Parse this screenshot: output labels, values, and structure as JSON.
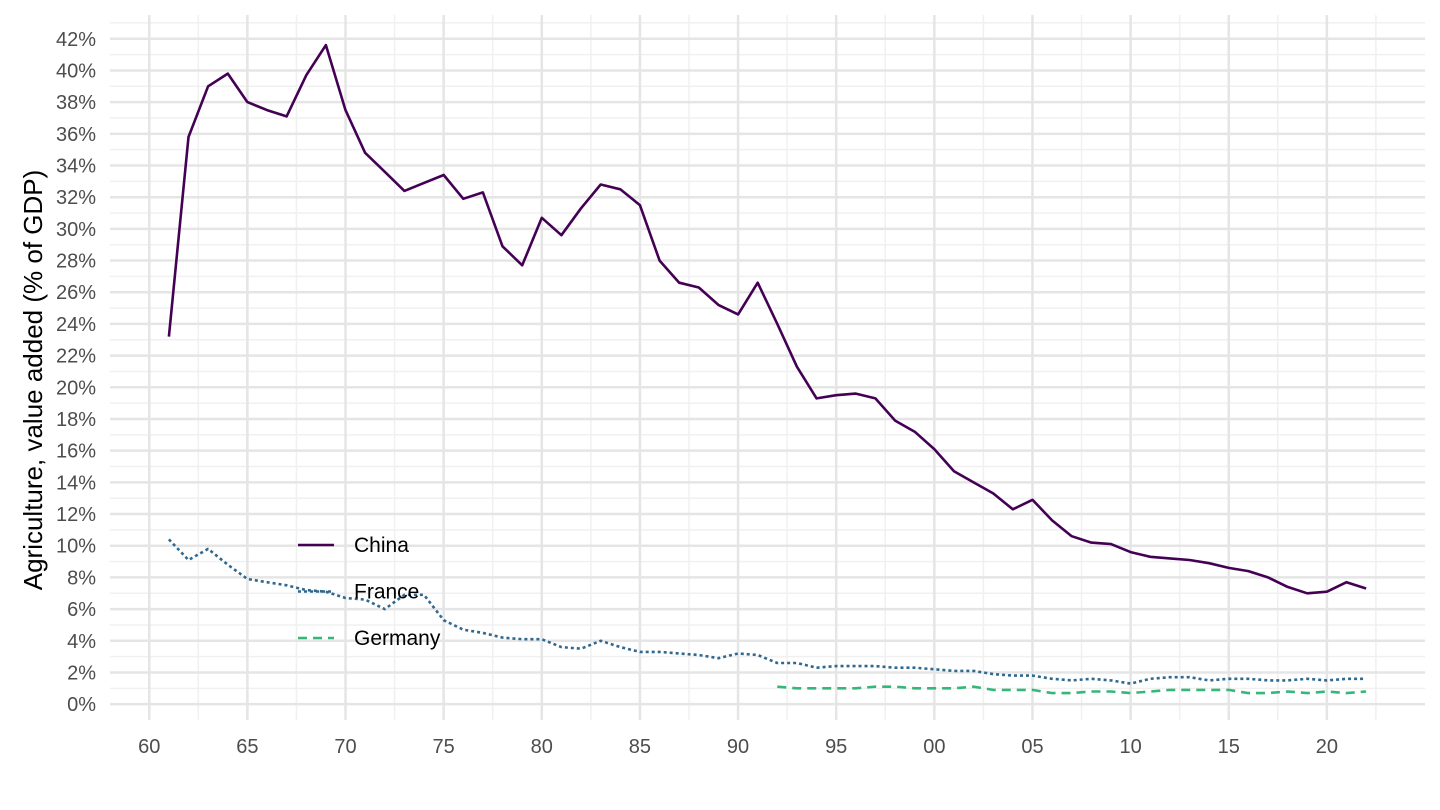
{
  "chart_data": {
    "type": "line",
    "title": "",
    "xlabel": "",
    "ylabel": "Agriculture, value added (% of GDP)",
    "x_tick_values": [
      1960,
      1965,
      1970,
      1975,
      1980,
      1985,
      1990,
      1995,
      2000,
      2005,
      2010,
      2015,
      2020
    ],
    "x_tick_labels": [
      "60",
      "65",
      "70",
      "75",
      "80",
      "85",
      "90",
      "95",
      "00",
      "05",
      "10",
      "15",
      "20"
    ],
    "y_tick_values": [
      0,
      2,
      4,
      6,
      8,
      10,
      12,
      14,
      16,
      18,
      20,
      22,
      24,
      26,
      28,
      30,
      32,
      34,
      36,
      38,
      40,
      42
    ],
    "y_tick_labels": [
      "0%",
      "2%",
      "4%",
      "6%",
      "8%",
      "10%",
      "12%",
      "14%",
      "16%",
      "18%",
      "20%",
      "22%",
      "24%",
      "26%",
      "28%",
      "30%",
      "32%",
      "34%",
      "36%",
      "38%",
      "40%",
      "42%"
    ],
    "xlim": [
      1958,
      2025
    ],
    "ylim": [
      -1,
      43.5
    ],
    "grid": true,
    "legend_position": "inside-left",
    "series": [
      {
        "name": "China",
        "color": "#440154",
        "dash": "solid",
        "x": [
          1961,
          1962,
          1963,
          1964,
          1965,
          1966,
          1967,
          1968,
          1969,
          1970,
          1971,
          1972,
          1973,
          1974,
          1975,
          1976,
          1977,
          1978,
          1979,
          1980,
          1981,
          1982,
          1983,
          1984,
          1985,
          1986,
          1987,
          1988,
          1989,
          1990,
          1991,
          1992,
          1993,
          1994,
          1995,
          1996,
          1997,
          1998,
          1999,
          2000,
          2001,
          2002,
          2003,
          2004,
          2005,
          2006,
          2007,
          2008,
          2009,
          2010,
          2011,
          2012,
          2013,
          2014,
          2015,
          2016,
          2017,
          2018,
          2019,
          2020,
          2021,
          2022
        ],
        "values": [
          23.2,
          35.8,
          39.0,
          39.8,
          38.0,
          37.5,
          37.1,
          39.7,
          41.6,
          37.5,
          34.8,
          33.6,
          32.4,
          32.9,
          33.4,
          31.9,
          32.3,
          28.9,
          27.7,
          30.7,
          29.6,
          31.3,
          32.8,
          32.5,
          31.5,
          28.0,
          26.6,
          26.3,
          25.2,
          24.6,
          26.6,
          24.0,
          21.3,
          19.3,
          19.5,
          19.6,
          19.3,
          17.9,
          17.2,
          16.1,
          14.7,
          14.0,
          13.3,
          12.3,
          12.9,
          11.6,
          10.6,
          10.2,
          10.1,
          9.6,
          9.3,
          9.2,
          9.1,
          8.9,
          8.6,
          8.4,
          8.0,
          7.4,
          7.0,
          7.1,
          7.7,
          7.3
        ]
      },
      {
        "name": "France",
        "color": "#31688e",
        "dash": "dotted",
        "x": [
          1961,
          1962,
          1963,
          1964,
          1965,
          1966,
          1967,
          1968,
          1969,
          1970,
          1971,
          1972,
          1973,
          1974,
          1975,
          1976,
          1977,
          1978,
          1979,
          1980,
          1981,
          1982,
          1983,
          1984,
          1985,
          1986,
          1987,
          1988,
          1989,
          1990,
          1991,
          1992,
          1993,
          1994,
          1995,
          1996,
          1997,
          1998,
          1999,
          2000,
          2001,
          2002,
          2003,
          2004,
          2005,
          2006,
          2007,
          2008,
          2009,
          2010,
          2011,
          2012,
          2013,
          2014,
          2015,
          2016,
          2017,
          2018,
          2019,
          2020,
          2021,
          2022
        ],
        "values": [
          10.4,
          9.1,
          9.8,
          8.8,
          7.9,
          7.7,
          7.5,
          7.2,
          7.1,
          6.7,
          6.6,
          6.0,
          6.9,
          6.9,
          5.3,
          4.7,
          4.5,
          4.2,
          4.1,
          4.1,
          3.6,
          3.5,
          4.0,
          3.6,
          3.3,
          3.3,
          3.2,
          3.1,
          2.9,
          3.2,
          3.1,
          2.6,
          2.6,
          2.3,
          2.4,
          2.4,
          2.4,
          2.3,
          2.3,
          2.2,
          2.1,
          2.1,
          1.9,
          1.8,
          1.8,
          1.6,
          1.5,
          1.6,
          1.5,
          1.3,
          1.6,
          1.7,
          1.7,
          1.5,
          1.6,
          1.6,
          1.5,
          1.5,
          1.6,
          1.5,
          1.6,
          1.6
        ]
      },
      {
        "name": "Germany",
        "color": "#35b779",
        "dash": "dashed",
        "x": [
          1992,
          1993,
          1994,
          1995,
          1996,
          1997,
          1998,
          1999,
          2000,
          2001,
          2002,
          2003,
          2004,
          2005,
          2006,
          2007,
          2008,
          2009,
          2010,
          2011,
          2012,
          2013,
          2014,
          2015,
          2016,
          2017,
          2018,
          2019,
          2020,
          2021,
          2022
        ],
        "values": [
          1.1,
          1.0,
          1.0,
          1.0,
          1.0,
          1.1,
          1.1,
          1.0,
          1.0,
          1.0,
          1.1,
          0.9,
          0.9,
          0.9,
          0.7,
          0.7,
          0.8,
          0.8,
          0.7,
          0.8,
          0.9,
          0.9,
          0.9,
          0.9,
          0.7,
          0.7,
          0.8,
          0.7,
          0.8,
          0.7,
          0.8
        ]
      }
    ]
  }
}
